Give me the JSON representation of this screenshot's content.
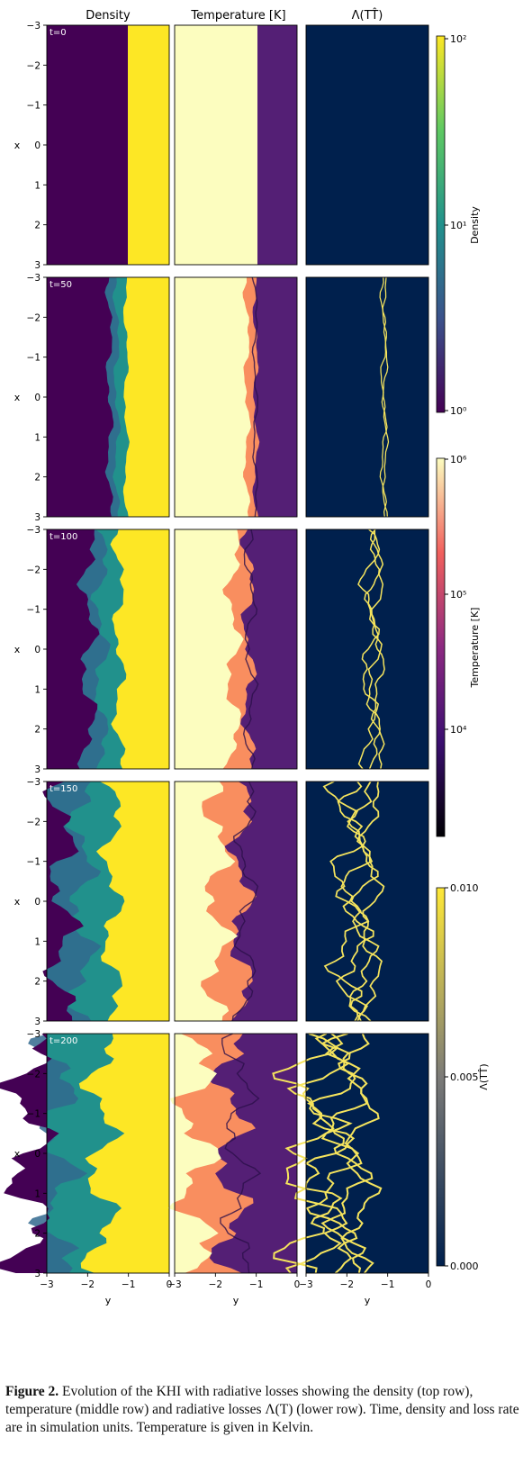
{
  "columns": [
    {
      "title": "Density"
    },
    {
      "title": "Temperature [K]"
    },
    {
      "title_html": "Λ(<tspan font-style='italic'>T</tspan><tspan font-style='italic'>T̂</tspan>)",
      "title": "Λ(TT̂)"
    }
  ],
  "rows": [
    {
      "time_label": "t=0"
    },
    {
      "time_label": "t=50"
    },
    {
      "time_label": "t=100"
    },
    {
      "time_label": "t=150"
    },
    {
      "time_label": "t=200"
    }
  ],
  "x_axis_label": "x",
  "y_axis_label": "y",
  "x_ticks": [
    "−3",
    "−2",
    "−1",
    "0",
    "1",
    "2",
    "3"
  ],
  "y_ticks": [
    "−3",
    "−2",
    "−1",
    "0"
  ],
  "colorbars": [
    {
      "label": "Density",
      "ticks": [
        "10²",
        "10¹",
        "10⁰"
      ]
    },
    {
      "label": "Temperature [K]",
      "ticks": [
        "10⁶",
        "10⁵",
        "10⁴"
      ]
    },
    {
      "label": "Λ(TT̂)",
      "ticks": [
        "0.010",
        "0.005",
        "0.000"
      ]
    }
  ],
  "colors": {
    "density_low": "#440154",
    "density_mid": "#21918c",
    "density_high": "#fde725",
    "temp_hot": "#fcfdbf",
    "temp_warm": "#f98e5f",
    "temp_cool": "#541f75",
    "temp_cold": "#000004",
    "loss_bg": "#00204d",
    "loss_line": "#f5e45d"
  },
  "caption": {
    "label": "Figure 2.",
    "text": " Evolution of the KHI with radiative losses showing the density (top row), temperature (middle row) and radiative losses Λ(T) (lower row). Time, density and loss rate are in simulation units. Temperature is given in Kelvin."
  }
}
